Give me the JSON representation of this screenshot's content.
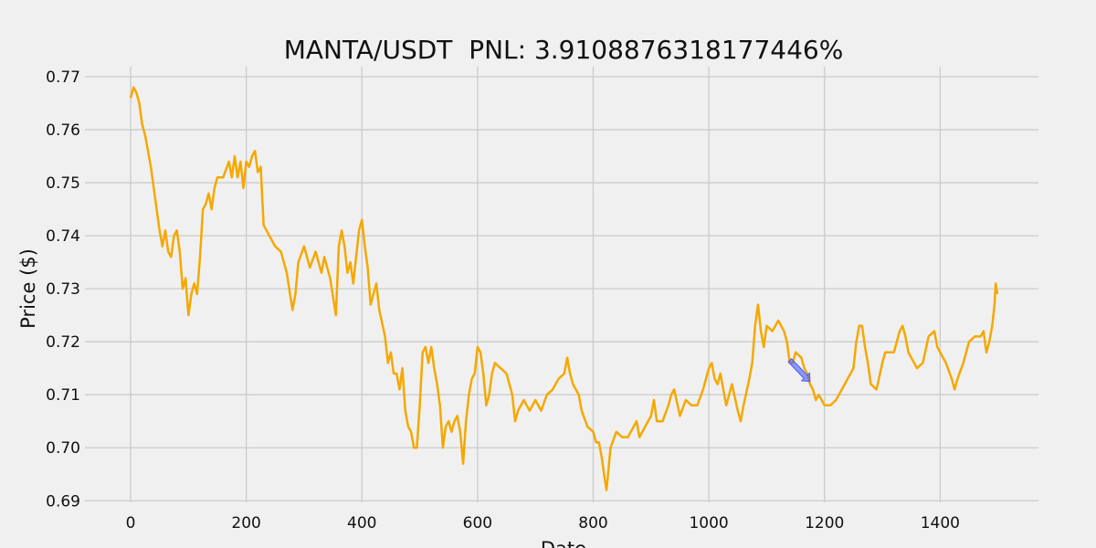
{
  "chart_data": {
    "type": "line",
    "title": "MANTA/USDT  PNL: 3.9108876318177446%",
    "x_label": "Date",
    "y_label": "Price ($)",
    "color": "#f5a800",
    "x": [
      0,
      5,
      10,
      15,
      20,
      25,
      30,
      35,
      40,
      45,
      50,
      55,
      60,
      65,
      70,
      75,
      80,
      85,
      90,
      95,
      100,
      105,
      110,
      115,
      120,
      125,
      130,
      135,
      140,
      145,
      150,
      160,
      170,
      175,
      180,
      185,
      190,
      195,
      200,
      205,
      210,
      215,
      220,
      225,
      230,
      235,
      240,
      250,
      260,
      270,
      280,
      285,
      290,
      300,
      310,
      320,
      330,
      335,
      345,
      355,
      360,
      365,
      370,
      375,
      380,
      385,
      390,
      395,
      400,
      405,
      410,
      415,
      420,
      425,
      430,
      440,
      445,
      450,
      455,
      460,
      465,
      470,
      475,
      480,
      485,
      490,
      495,
      500,
      505,
      510,
      515,
      520,
      525,
      530,
      535,
      540,
      545,
      550,
      555,
      560,
      565,
      570,
      575,
      580,
      585,
      590,
      595,
      600,
      605,
      610,
      615,
      620,
      625,
      630,
      640,
      650,
      655,
      660,
      665,
      670,
      680,
      690,
      700,
      710,
      720,
      730,
      740,
      750,
      755,
      760,
      765,
      775,
      780,
      790,
      800,
      805,
      810,
      815,
      820,
      823,
      830,
      840,
      850,
      860,
      870,
      875,
      880,
      890,
      900,
      905,
      910,
      920,
      930,
      935,
      940,
      950,
      960,
      970,
      980,
      990,
      1000,
      1005,
      1010,
      1015,
      1020,
      1030,
      1040,
      1050,
      1055,
      1060,
      1070,
      1075,
      1080,
      1085,
      1090,
      1095,
      1100,
      1110,
      1120,
      1130,
      1135,
      1140,
      1145,
      1150,
      1160,
      1165,
      1170,
      1175,
      1180,
      1185,
      1190,
      1200,
      1210,
      1220,
      1230,
      1240,
      1250,
      1255,
      1260,
      1265,
      1270,
      1275,
      1280,
      1290,
      1300,
      1305,
      1310,
      1320,
      1330,
      1335,
      1340,
      1345,
      1350,
      1360,
      1370,
      1380,
      1390,
      1395,
      1400,
      1410,
      1420,
      1425,
      1430,
      1440,
      1450,
      1460,
      1470,
      1475,
      1480,
      1485,
      1490,
      1494,
      1496,
      1499
    ],
    "values": [
      0.766,
      0.768,
      0.767,
      0.765,
      0.761,
      0.759,
      0.756,
      0.753,
      0.749,
      0.745,
      0.741,
      0.738,
      0.741,
      0.737,
      0.736,
      0.74,
      0.741,
      0.737,
      0.73,
      0.732,
      0.725,
      0.729,
      0.731,
      0.729,
      0.736,
      0.745,
      0.746,
      0.748,
      0.745,
      0.749,
      0.751,
      0.751,
      0.754,
      0.751,
      0.755,
      0.751,
      0.754,
      0.749,
      0.754,
      0.753,
      0.755,
      0.756,
      0.752,
      0.753,
      0.742,
      0.741,
      0.74,
      0.738,
      0.737,
      0.733,
      0.726,
      0.729,
      0.735,
      0.738,
      0.734,
      0.737,
      0.733,
      0.736,
      0.732,
      0.725,
      0.738,
      0.741,
      0.738,
      0.733,
      0.735,
      0.731,
      0.736,
      0.741,
      0.743,
      0.738,
      0.734,
      0.727,
      0.729,
      0.731,
      0.726,
      0.721,
      0.716,
      0.718,
      0.714,
      0.714,
      0.711,
      0.715,
      0.707,
      0.704,
      0.703,
      0.7,
      0.7,
      0.708,
      0.718,
      0.719,
      0.716,
      0.719,
      0.715,
      0.712,
      0.708,
      0.7,
      0.704,
      0.705,
      0.703,
      0.705,
      0.706,
      0.703,
      0.697,
      0.705,
      0.71,
      0.713,
      0.714,
      0.719,
      0.718,
      0.714,
      0.708,
      0.71,
      0.714,
      0.716,
      0.715,
      0.714,
      0.712,
      0.71,
      0.705,
      0.707,
      0.709,
      0.707,
      0.709,
      0.707,
      0.71,
      0.711,
      0.713,
      0.714,
      0.717,
      0.714,
      0.712,
      0.71,
      0.707,
      0.704,
      0.703,
      0.701,
      0.701,
      0.698,
      0.694,
      0.692,
      0.7,
      0.703,
      0.702,
      0.702,
      0.704,
      0.705,
      0.702,
      0.704,
      0.706,
      0.709,
      0.705,
      0.705,
      0.708,
      0.71,
      0.711,
      0.706,
      0.709,
      0.708,
      0.708,
      0.711,
      0.715,
      0.716,
      0.713,
      0.712,
      0.714,
      0.708,
      0.712,
      0.707,
      0.705,
      0.708,
      0.713,
      0.716,
      0.723,
      0.727,
      0.722,
      0.719,
      0.723,
      0.722,
      0.724,
      0.722,
      0.72,
      0.716,
      0.716,
      0.718,
      0.717,
      0.715,
      0.714,
      0.712,
      0.711,
      0.709,
      0.71,
      0.708,
      0.708,
      0.709,
      0.711,
      0.713,
      0.715,
      0.72,
      0.723,
      0.723,
      0.719,
      0.716,
      0.712,
      0.711,
      0.716,
      0.718,
      0.718,
      0.718,
      0.722,
      0.723,
      0.721,
      0.718,
      0.717,
      0.715,
      0.716,
      0.721,
      0.722,
      0.719,
      0.718,
      0.716,
      0.713,
      0.711,
      0.713,
      0.716,
      0.72,
      0.721,
      0.721,
      0.722,
      0.718,
      0.72,
      0.723,
      0.727,
      0.731,
      0.729
    ],
    "arrow": {
      "x": [
        1140,
        1175
      ],
      "y": [
        0.7165,
        0.7125
      ],
      "color": "#4a5cff"
    },
    "xlim": [
      -79,
      1570
    ],
    "ylim": [
      0.6897,
      0.7719
    ],
    "xticks": [
      0,
      200,
      400,
      600,
      800,
      1000,
      1200,
      1400
    ],
    "yticks": [
      0.69,
      {
        "value": 0.7,
        "label": "0.70"
      },
      0.71,
      0.72,
      0.73,
      0.74,
      0.75,
      0.76,
      0.77
    ],
    "grid": true
  }
}
